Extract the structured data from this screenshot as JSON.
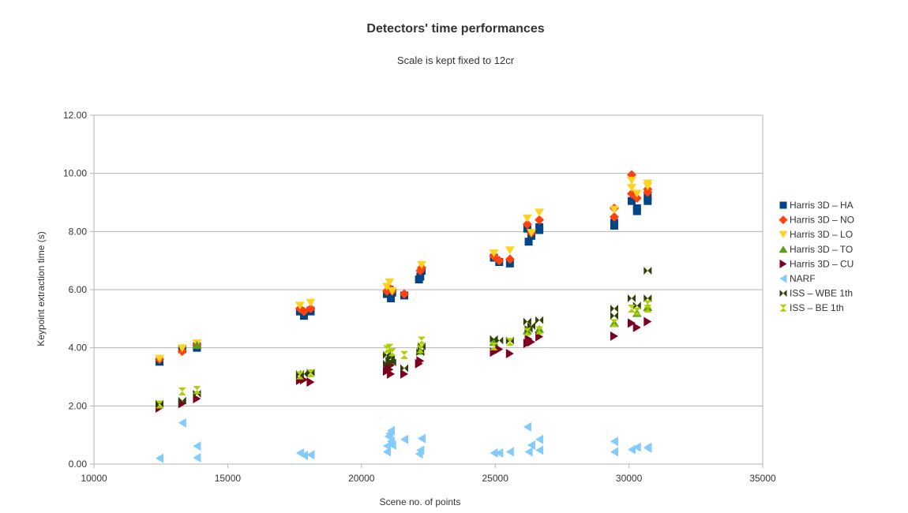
{
  "chart_data": {
    "type": "scatter",
    "title": "Detectors' time performances",
    "subtitle": "Scale is kept fixed to 12cr",
    "xlabel": "Scene no. of points",
    "ylabel": "Keypoint extraction time (s)",
    "xlim": [
      10000,
      35000
    ],
    "ylim": [
      0,
      12
    ],
    "x_ticks": [
      "10000",
      "15000",
      "20000",
      "25000",
      "30000",
      "35000"
    ],
    "y_ticks": [
      "0.00",
      "2.00",
      "4.00",
      "6.00",
      "8.00",
      "10.00",
      "12.00"
    ],
    "grid": "horizontal",
    "legend_position": "right",
    "series": [
      {
        "name": "Harris 3D – HA",
        "color": "#004586",
        "marker": "square",
        "points": [
          [
            12450,
            3.52
          ],
          [
            13300,
            3.95
          ],
          [
            13850,
            4.05
          ],
          [
            13850,
            4.0
          ],
          [
            17700,
            5.25
          ],
          [
            17850,
            5.1
          ],
          [
            18100,
            5.28
          ],
          [
            18100,
            5.25
          ],
          [
            20950,
            5.85
          ],
          [
            21050,
            5.95
          ],
          [
            21050,
            6.0
          ],
          [
            21100,
            5.7
          ],
          [
            21150,
            5.9
          ],
          [
            21600,
            5.8
          ],
          [
            22150,
            6.35
          ],
          [
            22200,
            6.45
          ],
          [
            22250,
            6.65
          ],
          [
            24950,
            7.1
          ],
          [
            25150,
            6.95
          ],
          [
            25550,
            6.9
          ],
          [
            26200,
            8.1
          ],
          [
            26250,
            7.65
          ],
          [
            26350,
            7.85
          ],
          [
            26650,
            8.05
          ],
          [
            26650,
            8.15
          ],
          [
            29450,
            8.2
          ],
          [
            29450,
            8.3
          ],
          [
            30100,
            9.05
          ],
          [
            30300,
            8.7
          ],
          [
            30300,
            8.8
          ],
          [
            30700,
            9.05
          ],
          [
            30700,
            9.2
          ]
        ]
      },
      {
        "name": "Harris 3D – NO",
        "color": "#ff420e",
        "marker": "diamond",
        "points": [
          [
            12450,
            3.6
          ],
          [
            13300,
            3.88
          ],
          [
            13850,
            4.1
          ],
          [
            17700,
            5.35
          ],
          [
            17850,
            5.25
          ],
          [
            18100,
            5.35
          ],
          [
            20950,
            5.95
          ],
          [
            21050,
            6.05
          ],
          [
            21150,
            5.95
          ],
          [
            21600,
            5.85
          ],
          [
            22200,
            6.65
          ],
          [
            22250,
            6.75
          ],
          [
            24950,
            7.15
          ],
          [
            25150,
            7.0
          ],
          [
            25550,
            7.05
          ],
          [
            26200,
            8.25
          ],
          [
            26350,
            7.95
          ],
          [
            26650,
            8.4
          ],
          [
            29450,
            8.5
          ],
          [
            29450,
            8.8
          ],
          [
            30100,
            9.3
          ],
          [
            30100,
            9.95
          ],
          [
            30300,
            9.15
          ],
          [
            30700,
            9.45
          ],
          [
            30700,
            9.35
          ]
        ]
      },
      {
        "name": "Harris 3D – LO",
        "color": "#ffd320",
        "marker": "triangle-down",
        "points": [
          [
            12450,
            3.62
          ],
          [
            13300,
            3.98
          ],
          [
            13850,
            4.15
          ],
          [
            17700,
            5.45
          ],
          [
            18100,
            5.55
          ],
          [
            20950,
            6.1
          ],
          [
            21050,
            6.25
          ],
          [
            21150,
            5.95
          ],
          [
            22250,
            6.85
          ],
          [
            24950,
            7.25
          ],
          [
            25550,
            7.35
          ],
          [
            26200,
            8.45
          ],
          [
            26350,
            7.95
          ],
          [
            26650,
            8.65
          ],
          [
            29450,
            8.75
          ],
          [
            30100,
            9.5
          ],
          [
            30100,
            9.75
          ],
          [
            30300,
            9.3
          ],
          [
            30700,
            9.65
          ],
          [
            30700,
            9.55
          ]
        ]
      },
      {
        "name": "Harris 3D – TO",
        "color": "#579d1c",
        "marker": "triangle-up",
        "points": [
          [
            13850,
            4.1
          ],
          [
            21050,
            3.75
          ],
          [
            22200,
            3.9
          ],
          [
            24950,
            4.2
          ],
          [
            26200,
            4.6
          ],
          [
            26650,
            4.65
          ],
          [
            29450,
            4.85
          ],
          [
            30300,
            5.2
          ],
          [
            30700,
            5.4
          ]
        ]
      },
      {
        "name": "Harris 3D – CU",
        "color": "#7e0021",
        "marker": "triangle-right",
        "points": [
          [
            12450,
            1.93
          ],
          [
            13300,
            2.08
          ],
          [
            13850,
            2.25
          ],
          [
            17700,
            2.88
          ],
          [
            17850,
            2.9
          ],
          [
            18100,
            2.82
          ],
          [
            20950,
            3.2
          ],
          [
            21000,
            3.35
          ],
          [
            21050,
            3.25
          ],
          [
            21100,
            3.1
          ],
          [
            21100,
            3.4
          ],
          [
            21600,
            3.1
          ],
          [
            22150,
            3.45
          ],
          [
            22200,
            3.55
          ],
          [
            24950,
            3.85
          ],
          [
            25150,
            3.95
          ],
          [
            25550,
            3.8
          ],
          [
            26200,
            4.15
          ],
          [
            26250,
            4.3
          ],
          [
            26350,
            4.2
          ],
          [
            26650,
            4.38
          ],
          [
            29450,
            4.4
          ],
          [
            30100,
            4.85
          ],
          [
            30300,
            4.7
          ],
          [
            30700,
            4.9
          ]
        ]
      },
      {
        "name": "NARF",
        "color": "#83caff",
        "marker": "triangle-left",
        "points": [
          [
            12450,
            0.2
          ],
          [
            13300,
            1.42
          ],
          [
            13850,
            0.22
          ],
          [
            13850,
            0.62
          ],
          [
            17700,
            0.38
          ],
          [
            17850,
            0.3
          ],
          [
            18100,
            0.32
          ],
          [
            20950,
            0.42
          ],
          [
            20950,
            0.62
          ],
          [
            21000,
            0.95
          ],
          [
            21050,
            1.05
          ],
          [
            21100,
            0.78
          ],
          [
            21100,
            1.15
          ],
          [
            21150,
            0.65
          ],
          [
            21600,
            0.85
          ],
          [
            22150,
            0.35
          ],
          [
            22200,
            0.48
          ],
          [
            22250,
            0.88
          ],
          [
            24950,
            0.38
          ],
          [
            25150,
            0.38
          ],
          [
            25550,
            0.42
          ],
          [
            26200,
            1.28
          ],
          [
            26250,
            0.42
          ],
          [
            26350,
            0.65
          ],
          [
            26650,
            0.48
          ],
          [
            26650,
            0.85
          ],
          [
            29450,
            0.42
          ],
          [
            29450,
            0.78
          ],
          [
            30100,
            0.5
          ],
          [
            30300,
            0.58
          ],
          [
            30700,
            0.55
          ],
          [
            30700,
            0.58
          ]
        ]
      },
      {
        "name": "ISS – WBE 1th",
        "color": "#314004",
        "marker": "bowtie",
        "points": [
          [
            12450,
            2.08
          ],
          [
            13300,
            2.18
          ],
          [
            13850,
            2.42
          ],
          [
            17700,
            3.1
          ],
          [
            17850,
            3.1
          ],
          [
            18100,
            3.15
          ],
          [
            20950,
            3.45
          ],
          [
            20950,
            3.75
          ],
          [
            21050,
            3.55
          ],
          [
            21100,
            3.65
          ],
          [
            21150,
            3.5
          ],
          [
            21600,
            3.3
          ],
          [
            22200,
            3.85
          ],
          [
            22250,
            4.05
          ],
          [
            24950,
            4.3
          ],
          [
            25150,
            4.25
          ],
          [
            25550,
            4.25
          ],
          [
            26200,
            4.9
          ],
          [
            26250,
            4.65
          ],
          [
            26350,
            4.75
          ],
          [
            26650,
            4.95
          ],
          [
            29450,
            5.1
          ],
          [
            29450,
            5.35
          ],
          [
            30100,
            5.7
          ],
          [
            30300,
            5.45
          ],
          [
            30700,
            5.7
          ],
          [
            30700,
            6.65
          ]
        ]
      },
      {
        "name": "ISS – BE 1th",
        "color": "#aecf00",
        "marker": "hourglass",
        "points": [
          [
            12450,
            2.05
          ],
          [
            13300,
            2.5
          ],
          [
            13850,
            2.55
          ],
          [
            17700,
            3.05
          ],
          [
            18100,
            3.12
          ],
          [
            20950,
            3.95
          ],
          [
            21050,
            4.0
          ],
          [
            21150,
            3.85
          ],
          [
            21600,
            3.75
          ],
          [
            22200,
            3.95
          ],
          [
            22250,
            4.25
          ],
          [
            24950,
            4.05
          ],
          [
            25550,
            4.2
          ],
          [
            26200,
            4.55
          ],
          [
            26650,
            4.6
          ],
          [
            29450,
            4.85
          ],
          [
            30100,
            5.35
          ],
          [
            30300,
            5.25
          ],
          [
            30700,
            5.35
          ],
          [
            30700,
            5.5
          ]
        ]
      }
    ]
  }
}
